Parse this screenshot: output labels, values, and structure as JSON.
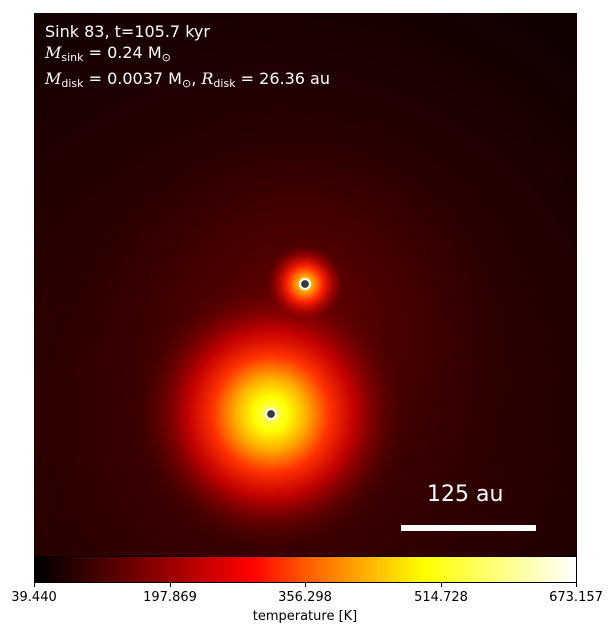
{
  "annotation": {
    "line1": "Sink 83, t=105.7 kyr",
    "mass_sink_symbol": "M",
    "mass_sink_sub": "sink",
    "mass_sink_value": " = 0.24 M",
    "mass_sink_unit_sub": "⊙",
    "mass_disk_symbol": "M",
    "mass_disk_sub": "disk",
    "mass_disk_value": " = 0.0037 M",
    "mass_disk_unit_sub": "⊙",
    "radius_disk_sep": ", ",
    "radius_disk_symbol": "R",
    "radius_disk_sub": "disk",
    "radius_disk_value": " = 26.36 au"
  },
  "scalebar": {
    "label": "125 au"
  },
  "colorbar": {
    "label": "temperature [K]",
    "ticks": [
      "39.440",
      "197.869",
      "356.298",
      "514.728",
      "673.157"
    ],
    "colormap": "hot"
  },
  "colors": {
    "sink_ring": "#ffffff",
    "sink_center": "#3a3a3a"
  }
}
